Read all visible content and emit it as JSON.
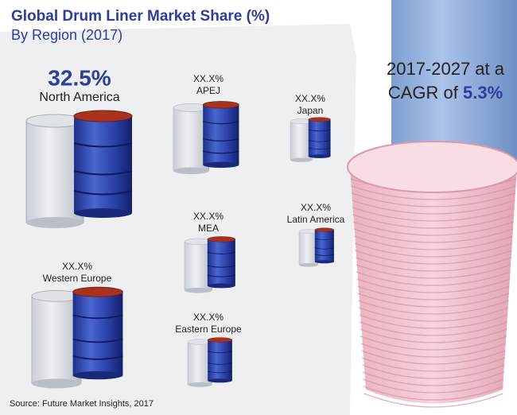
{
  "header": {
    "title": "Global Drum Liner Market Share (%)",
    "subtitle": "By Region (2017)"
  },
  "regions": [
    {
      "share": "32.5%",
      "name": "North America"
    },
    {
      "share": "XX.X%",
      "name": "APEJ"
    },
    {
      "share": "XX.X%",
      "name": "Japan"
    },
    {
      "share": "XX.X%",
      "name": "MEA"
    },
    {
      "share": "XX.X%",
      "name": "Latin America"
    },
    {
      "share": "XX.X%",
      "name": "Western Europe"
    },
    {
      "share": "XX.X%",
      "name": "Eastern Europe"
    }
  ],
  "cagr": {
    "period": "2017-2027 at a",
    "label": "CAGR of",
    "value": "5.3%"
  },
  "source": "Source: Future Market Insights, 2017"
}
